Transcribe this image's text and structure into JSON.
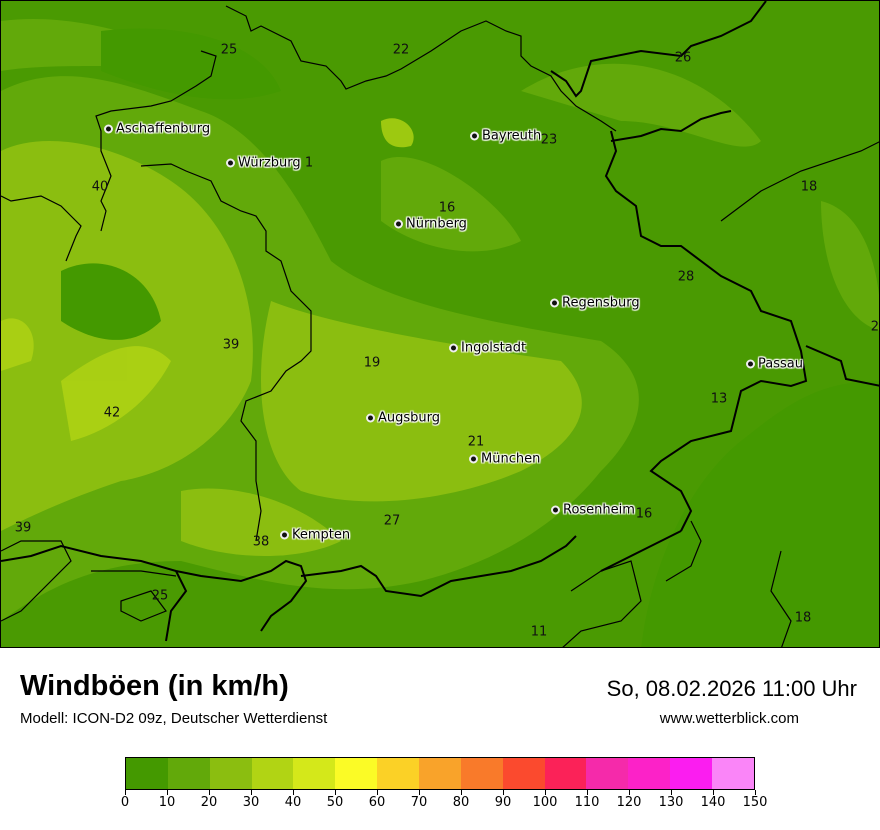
{
  "header": {
    "title": "Windböen (in km/h)",
    "subtitle": "Modell: ICON-D2 09z, Deutscher Wetterdienst",
    "datetime": "So, 08.02.2026 11:00 Uhr",
    "website": "www.wetterblick.com"
  },
  "cities": [
    {
      "name": "Aschaffenburg"
    },
    {
      "name": "Würzburg"
    },
    {
      "name": "Bayreuth"
    },
    {
      "name": "Nürnberg"
    },
    {
      "name": "Regensburg"
    },
    {
      "name": "Ingolstadt"
    },
    {
      "name": "Passau"
    },
    {
      "name": "Augsburg"
    },
    {
      "name": "München"
    },
    {
      "name": "Rosenheim"
    },
    {
      "name": "Kempten"
    }
  ],
  "values": [
    "25",
    "22",
    "26",
    "23",
    "1",
    "40",
    "16",
    "18",
    "28",
    "21",
    "39",
    "19",
    "42",
    "13",
    "21",
    "16",
    "27",
    "38",
    "39",
    "25",
    "11",
    "18"
  ],
  "legend": {
    "ticks": [
      "0",
      "10",
      "20",
      "30",
      "40",
      "50",
      "60",
      "70",
      "80",
      "90",
      "100",
      "110",
      "120",
      "130",
      "140",
      "150"
    ],
    "colors": [
      "#449900",
      "#62a90a",
      "#8bbe10",
      "#b1d414",
      "#d4e81a",
      "#fbfb26",
      "#fbd126",
      "#f9a32a",
      "#f97a2a",
      "#fb4a2e",
      "#fb2258",
      "#f52aaa",
      "#fc22c8",
      "#fb1df0",
      "#fa85f8"
    ]
  }
}
